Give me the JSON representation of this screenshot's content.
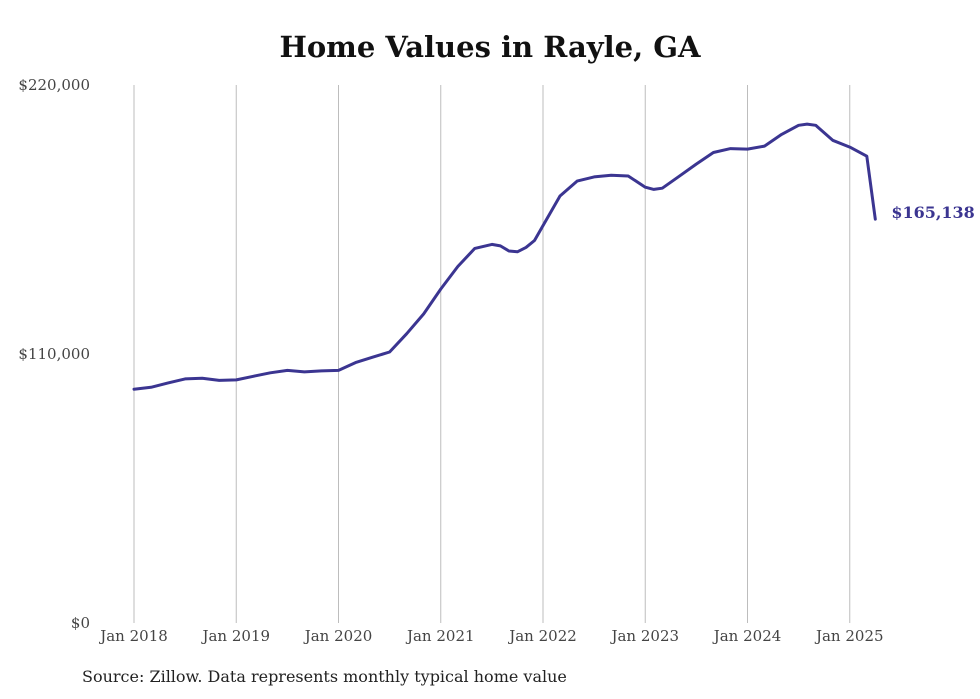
{
  "chart_data": {
    "type": "line",
    "title": "Home Values in Rayle, GA",
    "source": "Source: Zillow. Data represents monthly typical home value",
    "ylim": [
      0,
      220000
    ],
    "y_ticks": [
      "$0",
      "$110,000",
      "$220,000"
    ],
    "y_tick_values": [
      0,
      110000,
      220000
    ],
    "x_ticks": [
      "Jan 2018",
      "Jan 2019",
      "Jan 2020",
      "Jan 2021",
      "Jan 2022",
      "Jan 2023",
      "Jan 2024",
      "Jan 2025"
    ],
    "x_tick_dates": [
      "2018-01",
      "2019-01",
      "2020-01",
      "2021-01",
      "2022-01",
      "2023-01",
      "2024-01",
      "2025-01"
    ],
    "x_range": [
      "2018-01",
      "2025-04"
    ],
    "grid": "vertical",
    "line_color": "#3b3591",
    "end_label": "$165,138",
    "series": [
      {
        "x": [
          "2018-01",
          "2018-03",
          "2018-05",
          "2018-07",
          "2018-09",
          "2018-11",
          "2019-01",
          "2019-03",
          "2019-05",
          "2019-07",
          "2019-09",
          "2019-11",
          "2020-01",
          "2020-03",
          "2020-05",
          "2020-07",
          "2020-09",
          "2020-11",
          "2021-01",
          "2021-03",
          "2021-05",
          "2021-07",
          "2021-08",
          "2021-09",
          "2021-10",
          "2021-11",
          "2021-12",
          "2022-01",
          "2022-03",
          "2022-05",
          "2022-07",
          "2022-09",
          "2022-11",
          "2023-01",
          "2023-02",
          "2023-03",
          "2023-05",
          "2023-07",
          "2023-09",
          "2023-11",
          "2024-01",
          "2024-03",
          "2024-05",
          "2024-07",
          "2024-08",
          "2024-09",
          "2024-11",
          "2025-01",
          "2025-03",
          "2025-04"
        ],
        "values": [
          95600,
          96400,
          98200,
          99800,
          100100,
          99200,
          99400,
          100900,
          102300,
          103300,
          102700,
          103100,
          103300,
          106500,
          108700,
          110800,
          118300,
          126400,
          136600,
          145800,
          153200,
          154800,
          154200,
          152100,
          151800,
          153600,
          156400,
          162500,
          174600,
          180700,
          182400,
          183100,
          182800,
          178200,
          177300,
          177800,
          182700,
          187700,
          192400,
          194000,
          193800,
          195000,
          199800,
          203500,
          204000,
          203500,
          197400,
          194600,
          190900,
          165138
        ]
      }
    ]
  }
}
